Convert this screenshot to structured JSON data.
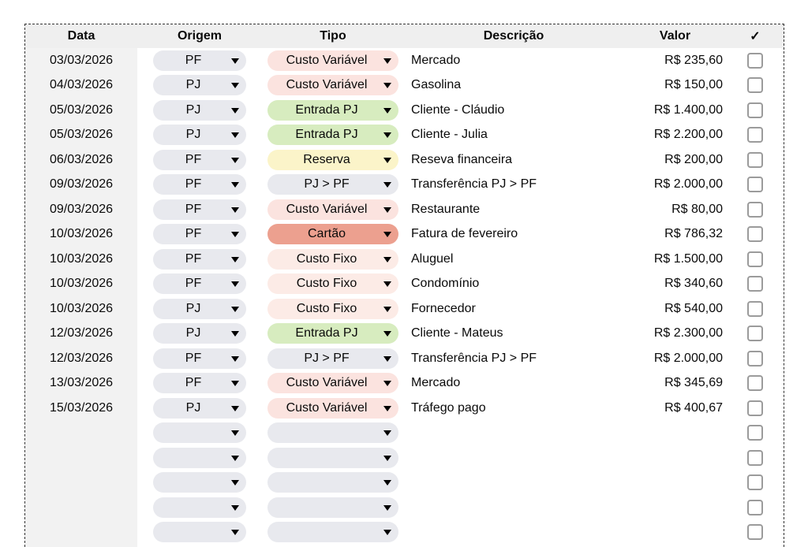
{
  "table": {
    "columns": {
      "data": "Data",
      "origem": "Origem",
      "tipo": "Tipo",
      "descricao": "Descrição",
      "valor": "Valor",
      "check": "✓"
    },
    "colors": {
      "header_bg": "#efefef",
      "date_column_bg": "#f2f2f2",
      "origem_pill": "#e8e9ee",
      "tipo": {
        "Custo Variável": "#fbe3df",
        "Custo Fixo": "#fcebe6",
        "Entrada PJ": "#d7ecbf",
        "Reserva": "#fbf4c9",
        "Cartão": "#eca08f",
        "PJ > PF": "#e8e9ee",
        "": "#e8e9ee"
      }
    },
    "rows": [
      {
        "data": "03/03/2026",
        "origem": "PF",
        "tipo": "Custo Variável",
        "descricao": "Mercado",
        "valor": "R$ 235,60",
        "checked": false
      },
      {
        "data": "04/03/2026",
        "origem": "PJ",
        "tipo": "Custo Variável",
        "descricao": "Gasolina",
        "valor": "R$ 150,00",
        "checked": false
      },
      {
        "data": "05/03/2026",
        "origem": "PJ",
        "tipo": "Entrada PJ",
        "descricao": "Cliente - Cláudio",
        "valor": "R$ 1.400,00",
        "checked": false
      },
      {
        "data": "05/03/2026",
        "origem": "PJ",
        "tipo": "Entrada PJ",
        "descricao": "Cliente - Julia",
        "valor": "R$ 2.200,00",
        "checked": false
      },
      {
        "data": "06/03/2026",
        "origem": "PF",
        "tipo": "Reserva",
        "descricao": "Reseva financeira",
        "valor": "R$ 200,00",
        "checked": false
      },
      {
        "data": "09/03/2026",
        "origem": "PF",
        "tipo": "PJ > PF",
        "descricao": "Transferência PJ > PF",
        "valor": "R$ 2.000,00",
        "checked": false
      },
      {
        "data": "09/03/2026",
        "origem": "PF",
        "tipo": "Custo Variável",
        "descricao": "Restaurante",
        "valor": "R$ 80,00",
        "checked": false
      },
      {
        "data": "10/03/2026",
        "origem": "PF",
        "tipo": "Cartão",
        "descricao": "Fatura de fevereiro",
        "valor": "R$ 786,32",
        "checked": false
      },
      {
        "data": "10/03/2026",
        "origem": "PF",
        "tipo": "Custo Fixo",
        "descricao": "Aluguel",
        "valor": "R$ 1.500,00",
        "checked": false
      },
      {
        "data": "10/03/2026",
        "origem": "PF",
        "tipo": "Custo Fixo",
        "descricao": "Condomínio",
        "valor": "R$ 340,60",
        "checked": false
      },
      {
        "data": "10/03/2026",
        "origem": "PJ",
        "tipo": "Custo Fixo",
        "descricao": "Fornecedor",
        "valor": "R$ 540,00",
        "checked": false
      },
      {
        "data": "12/03/2026",
        "origem": "PJ",
        "tipo": "Entrada PJ",
        "descricao": "Cliente - Mateus",
        "valor": "R$ 2.300,00",
        "checked": false
      },
      {
        "data": "12/03/2026",
        "origem": "PF",
        "tipo": "PJ > PF",
        "descricao": "Transferência PJ > PF",
        "valor": "R$ 2.000,00",
        "checked": false
      },
      {
        "data": "13/03/2026",
        "origem": "PF",
        "tipo": "Custo Variável",
        "descricao": "Mercado",
        "valor": "R$ 345,69",
        "checked": false
      },
      {
        "data": "15/03/2026",
        "origem": "PJ",
        "tipo": "Custo Variável",
        "descricao": "Tráfego pago",
        "valor": "R$ 400,67",
        "checked": false
      },
      {
        "data": "",
        "origem": "",
        "tipo": "",
        "descricao": "",
        "valor": "",
        "checked": false
      },
      {
        "data": "",
        "origem": "",
        "tipo": "",
        "descricao": "",
        "valor": "",
        "checked": false
      },
      {
        "data": "",
        "origem": "",
        "tipo": "",
        "descricao": "",
        "valor": "",
        "checked": false
      },
      {
        "data": "",
        "origem": "",
        "tipo": "",
        "descricao": "",
        "valor": "",
        "checked": false
      },
      {
        "data": "",
        "origem": "",
        "tipo": "",
        "descricao": "",
        "valor": "",
        "checked": false
      }
    ]
  }
}
